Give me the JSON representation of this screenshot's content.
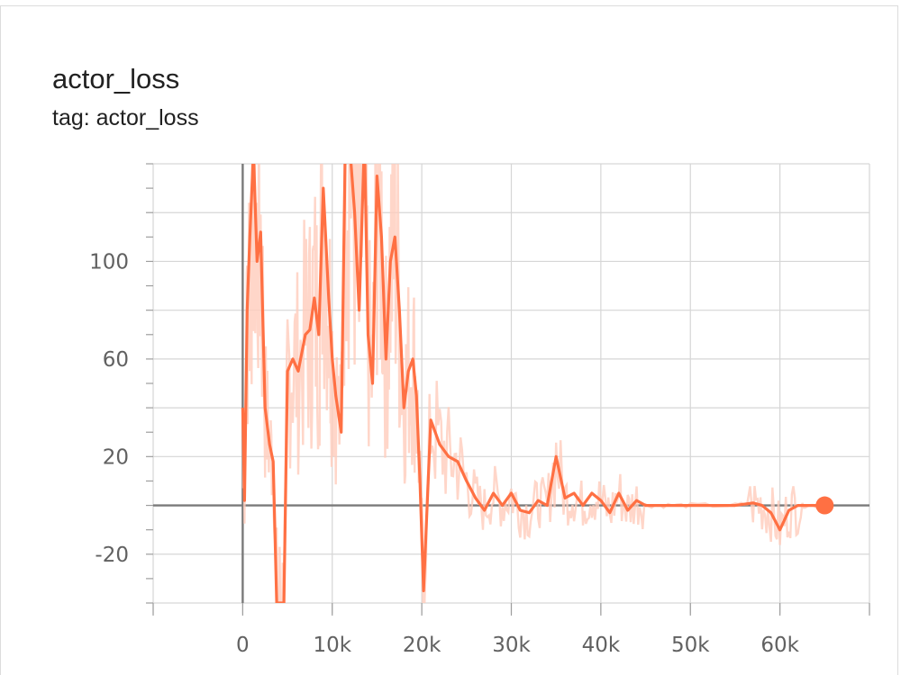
{
  "card": {
    "title": "actor_loss",
    "subtitle": "tag: actor_loss"
  },
  "colors": {
    "line": "#ff7043",
    "line_raw": "#ffccbc",
    "grid": "#d6d6d6",
    "axis": "#9e9e9e"
  },
  "chart_data": {
    "type": "line",
    "title": "actor_loss",
    "xlabel": "",
    "ylabel": "",
    "xlim": [
      -10000,
      70000
    ],
    "ylim": [
      -40,
      140
    ],
    "x_ticks": [
      0,
      10000,
      20000,
      30000,
      40000,
      50000,
      60000
    ],
    "x_tick_labels": [
      "0",
      "10k",
      "20k",
      "30k",
      "40k",
      "50k",
      "60k"
    ],
    "y_ticks": [
      100,
      60,
      20,
      -20
    ],
    "y_tick_labels": [
      "100",
      "60",
      "20",
      "-20"
    ],
    "grid": true,
    "series": [
      {
        "smoothed": true,
        "x": [
          0,
          200,
          500,
          800,
          1200,
          1600,
          2000,
          2500,
          3000,
          3400,
          3800,
          4200,
          4600,
          5000,
          5600,
          6200,
          7000,
          7500,
          8000,
          8500,
          9000,
          9600,
          10000,
          10400,
          11000,
          11500,
          12000,
          12500,
          13000,
          13600,
          14000,
          14500,
          15000,
          15500,
          16000,
          16500,
          17000,
          17500,
          18000,
          18500,
          19000,
          19400,
          19800,
          20200,
          21000,
          22000,
          23000,
          24000,
          25000,
          26000,
          27000,
          28000,
          29000,
          30000,
          31000,
          32000,
          33000,
          34000,
          35000,
          36000,
          37000,
          38000,
          39000,
          40000,
          41000,
          42000,
          43000,
          44000,
          45000,
          47000,
          50000,
          55000,
          57000,
          58000,
          59000,
          60000,
          61000,
          62000,
          63000,
          65000
        ],
        "y": [
          40,
          2,
          80,
          110,
          145,
          100,
          112,
          40,
          25,
          18,
          -40,
          -40,
          -40,
          55,
          60,
          55,
          70,
          72,
          85,
          70,
          130,
          85,
          60,
          45,
          30,
          160,
          145,
          120,
          80,
          150,
          70,
          50,
          135,
          110,
          60,
          100,
          110,
          80,
          40,
          55,
          60,
          45,
          10,
          -35,
          35,
          25,
          20,
          18,
          10,
          3,
          -2,
          5,
          0,
          5,
          -2,
          -3,
          2,
          0,
          20,
          3,
          5,
          0,
          5,
          2,
          -3,
          5,
          -2,
          2,
          0,
          0,
          0,
          0,
          1,
          0,
          -3,
          -10,
          -2,
          0,
          0,
          0
        ]
      }
    ],
    "last_point": {
      "x": 65000,
      "y": 0
    }
  }
}
